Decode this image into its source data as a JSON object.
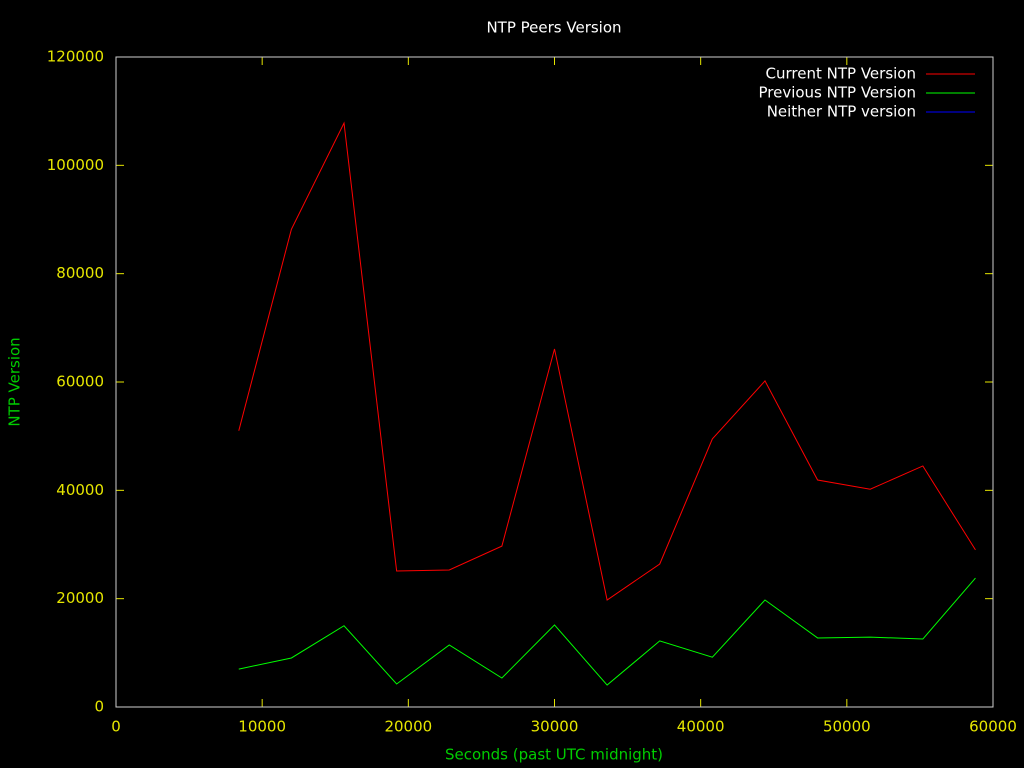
{
  "chart_data": {
    "type": "line",
    "title": "NTP Peers Version",
    "xlabel": "Seconds (past UTC midnight)",
    "ylabel": "NTP Version",
    "x": [
      8400,
      12000,
      15600,
      19200,
      22800,
      26400,
      30000,
      33600,
      37200,
      40800,
      44400,
      48000,
      51600,
      55200,
      58800
    ],
    "series": [
      {
        "name": "Current NTP Version",
        "color": "#ff0000",
        "values": [
          51000,
          88200,
          107800,
          25100,
          25300,
          29700,
          66100,
          19750,
          26400,
          49500,
          60200,
          41900,
          40200,
          44500,
          29000
        ]
      },
      {
        "name": "Previous NTP Version",
        "color": "#00ff00",
        "values": [
          7000,
          9050,
          15000,
          4250,
          11450,
          5350,
          15150,
          4050,
          12200,
          9200,
          19750,
          12750,
          12900,
          12550,
          23800
        ]
      },
      {
        "name": "Neither NTP version",
        "color": "#0000ff",
        "values": [
          0,
          0,
          0,
          0,
          0,
          0,
          0,
          0,
          0,
          0,
          0,
          0,
          0,
          0,
          0
        ]
      }
    ],
    "xlim": [
      0,
      60000
    ],
    "xticks": [
      0,
      10000,
      20000,
      30000,
      40000,
      50000,
      60000
    ],
    "ylim": [
      0,
      120000
    ],
    "yticks": [
      0,
      20000,
      40000,
      60000,
      80000,
      100000,
      120000
    ],
    "grid": false,
    "legend": "top-right"
  }
}
